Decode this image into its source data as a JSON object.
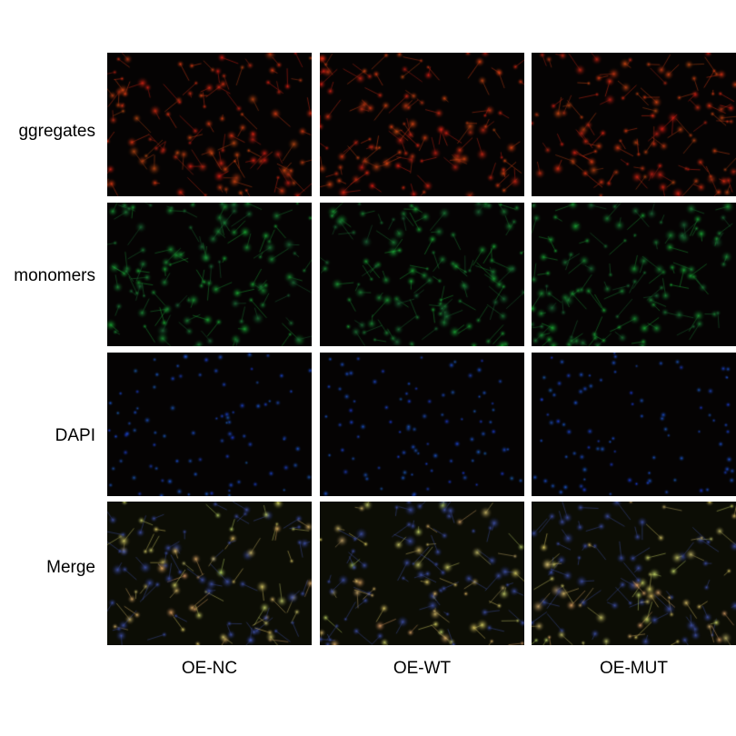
{
  "rows": [
    {
      "label": "ggregates",
      "channel": "red",
      "color": "#e0321e"
    },
    {
      "label": "monomers",
      "channel": "green",
      "color": "#2fa55a"
    },
    {
      "label": "DAPI",
      "channel": "blue",
      "color": "#2a4fd0"
    },
    {
      "label": "Merge",
      "channel": "merge",
      "color": "#d9a060"
    }
  ],
  "columns": [
    {
      "label": "OE-NC"
    },
    {
      "label": "OE-WT"
    },
    {
      "label": "OE-MUT"
    }
  ]
}
